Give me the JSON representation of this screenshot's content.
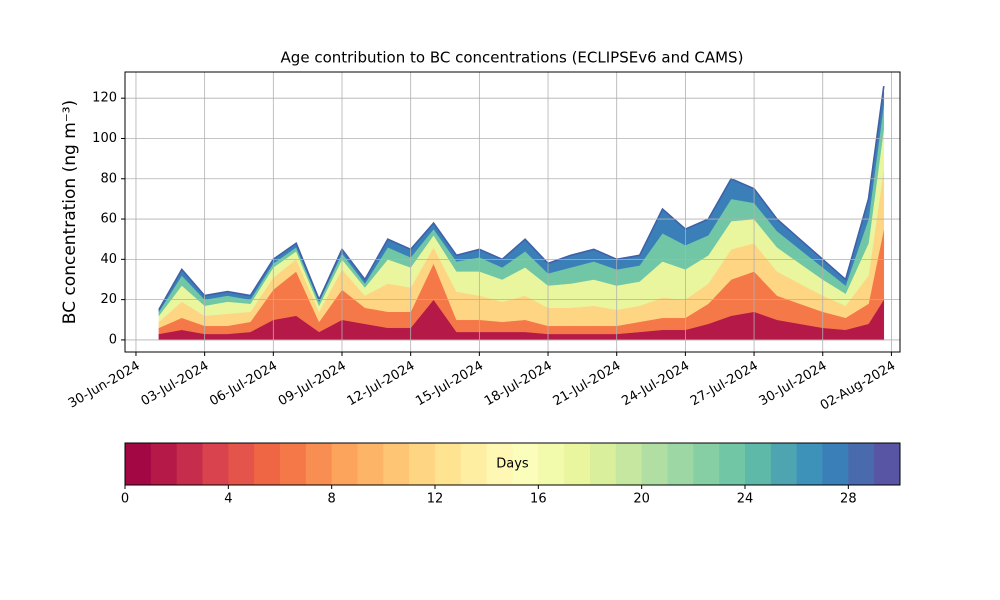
{
  "chart_data": {
    "type": "stacked_area",
    "title": "Age contribution to BC concentrations (ECLIPSEv6 and CAMS)",
    "y_label": "BC concentration (ng m⁻³)",
    "x": [
      "2024-07-01",
      "2024-07-02",
      "2024-07-03",
      "2024-07-04",
      "2024-07-05",
      "2024-07-06",
      "2024-07-07",
      "2024-07-08",
      "2024-07-09",
      "2024-07-10",
      "2024-07-11",
      "2024-07-12",
      "2024-07-13",
      "2024-07-14",
      "2024-07-15",
      "2024-07-16",
      "2024-07-17",
      "2024-07-18",
      "2024-07-19",
      "2024-07-20",
      "2024-07-21",
      "2024-07-22",
      "2024-07-23",
      "2024-07-24",
      "2024-07-25",
      "2024-07-26",
      "2024-07-27",
      "2024-07-28",
      "2024-07-29",
      "2024-07-30",
      "2024-07-31",
      "2024-08-01",
      "2024-08-01T16:00"
    ],
    "series": [
      {
        "color": "#b41947",
        "values": [
          3,
          5,
          3,
          3,
          4,
          10,
          12,
          4,
          10,
          8,
          6,
          6,
          20,
          4,
          4,
          4,
          4,
          3,
          3,
          3,
          3,
          4,
          5,
          5,
          8,
          12,
          14,
          10,
          8,
          6,
          5,
          8,
          20
        ]
      },
      {
        "color": "#f57848",
        "values": [
          3,
          6,
          4,
          4,
          5,
          15,
          22,
          5,
          15,
          8,
          8,
          8,
          18,
          6,
          6,
          5,
          6,
          4,
          4,
          4,
          4,
          5,
          6,
          6,
          10,
          18,
          20,
          12,
          10,
          8,
          6,
          10,
          35
        ]
      },
      {
        "color": "#fed683",
        "values": [
          3,
          8,
          5,
          6,
          5,
          6,
          6,
          5,
          10,
          6,
          14,
          12,
          8,
          14,
          12,
          10,
          12,
          9,
          9,
          10,
          8,
          8,
          10,
          9,
          10,
          15,
          14,
          12,
          10,
          8,
          6,
          14,
          30
        ]
      },
      {
        "color": "#e9f69e",
        "values": [
          3,
          8,
          5,
          6,
          4,
          5,
          4,
          3,
          5,
          4,
          12,
          10,
          6,
          10,
          12,
          11,
          14,
          11,
          12,
          13,
          12,
          12,
          18,
          15,
          14,
          14,
          12,
          12,
          10,
          8,
          6,
          16,
          20
        ]
      },
      {
        "color": "#71c7a5",
        "values": [
          2,
          5,
          3,
          3,
          2,
          2,
          2,
          2,
          3,
          2,
          6,
          5,
          3,
          5,
          7,
          6,
          8,
          6,
          8,
          9,
          8,
          8,
          14,
          12,
          10,
          11,
          8,
          8,
          7,
          6,
          4,
          12,
          12
        ]
      },
      {
        "color": "#3a7fb8",
        "values": [
          1,
          3,
          2,
          2,
          2,
          2,
          2,
          1,
          2,
          2,
          4,
          4,
          3,
          3,
          4,
          4,
          6,
          5,
          6,
          6,
          5,
          5,
          12,
          8,
          8,
          10,
          7,
          6,
          5,
          4,
          3,
          10,
          9
        ]
      }
    ],
    "outline_color": "#4060a8",
    "xlim": [
      "2024-06-29T12:30",
      "2024-08-02T09:00"
    ],
    "xticks": [
      {
        "value": "2024-06-30",
        "label": "30-Jun-2024"
      },
      {
        "value": "2024-07-03",
        "label": "03-Jul-2024"
      },
      {
        "value": "2024-07-06",
        "label": "06-Jul-2024"
      },
      {
        "value": "2024-07-09",
        "label": "09-Jul-2024"
      },
      {
        "value": "2024-07-12",
        "label": "12-Jul-2024"
      },
      {
        "value": "2024-07-15",
        "label": "15-Jul-2024"
      },
      {
        "value": "2024-07-18",
        "label": "18-Jul-2024"
      },
      {
        "value": "2024-07-21",
        "label": "21-Jul-2024"
      },
      {
        "value": "2024-07-24",
        "label": "24-Jul-2024"
      },
      {
        "value": "2024-07-27",
        "label": "27-Jul-2024"
      },
      {
        "value": "2024-07-30",
        "label": "30-Jul-2024"
      },
      {
        "value": "2024-08-02",
        "label": "02-Aug-2024"
      }
    ],
    "ylim": [
      -6,
      133
    ],
    "yticks": [
      0,
      20,
      40,
      60,
      80,
      100,
      120
    ],
    "grid": true,
    "colorbar": {
      "label": "Days",
      "lim": [
        0,
        30
      ],
      "ticks": [
        0,
        4,
        8,
        12,
        16,
        20,
        24,
        28
      ],
      "colors": [
        "#a30844",
        "#b41947",
        "#c62c4b",
        "#d8434e",
        "#e5544a",
        "#ef6645",
        "#f57848",
        "#f98e52",
        "#fca35c",
        "#fdb466",
        "#fdc574",
        "#fed683",
        "#fee491",
        "#feeea2",
        "#fff8b4",
        "#fbfdba",
        "#f2faac",
        "#e9f69e",
        "#d9ef9b",
        "#c5e7a0",
        "#b1dfa3",
        "#9cd7a4",
        "#86cfa5",
        "#71c7a5",
        "#5fb9a9",
        "#4ea5b1",
        "#3c92b8",
        "#3a7fb8",
        "#4a6aae",
        "#5955a5"
      ]
    }
  }
}
